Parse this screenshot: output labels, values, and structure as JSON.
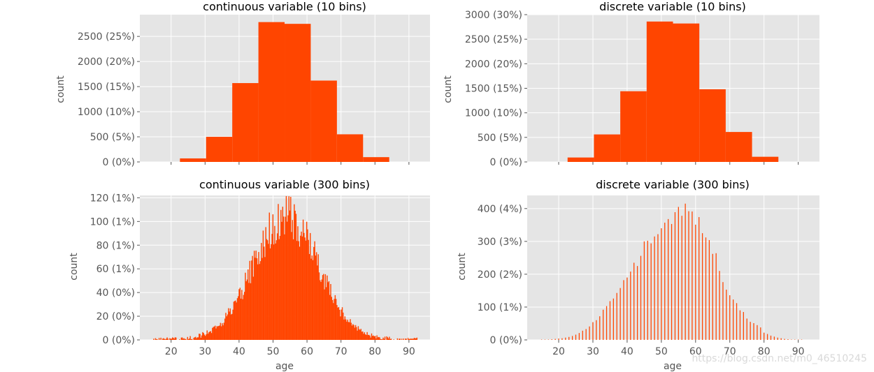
{
  "colors": {
    "panel_bg": "#e5e5e5",
    "bar": "#ff4500",
    "grid": "#ffffff",
    "tick_text": "#555555"
  },
  "watermark": "https://blog.csdn.net/m0_46510245",
  "chart_data": [
    {
      "type": "bar",
      "title": "continuous variable (10 bins)",
      "xlabel": "",
      "ylabel": "count",
      "xlim": [
        10.8,
        96.2
      ],
      "ylim": [
        0,
        2933
      ],
      "xticks": [
        20,
        30,
        40,
        50,
        60,
        70,
        80,
        90
      ],
      "show_xtick_labels": false,
      "yticks": [
        {
          "value": 0,
          "label": "0 (0%)"
        },
        {
          "value": 500,
          "label": "500 (5%)"
        },
        {
          "value": 1000,
          "label": "1000 (10%)"
        },
        {
          "value": 1500,
          "label": "1500 (15%)"
        },
        {
          "value": 2000,
          "label": "2000 (20%)"
        },
        {
          "value": 2500,
          "label": "2500 (25%)"
        }
      ],
      "bins": [
        {
          "x0": 22.6,
          "x1": 30.3,
          "count": 70
        },
        {
          "x0": 30.3,
          "x1": 38.0,
          "count": 500
        },
        {
          "x0": 38.0,
          "x1": 45.7,
          "count": 1570
        },
        {
          "x0": 45.7,
          "x1": 53.4,
          "count": 2785
        },
        {
          "x0": 53.4,
          "x1": 61.1,
          "count": 2750
        },
        {
          "x0": 61.1,
          "x1": 68.8,
          "count": 1620
        },
        {
          "x0": 68.8,
          "x1": 76.5,
          "count": 550
        },
        {
          "x0": 76.5,
          "x1": 84.2,
          "count": 95
        }
      ]
    },
    {
      "type": "bar",
      "title": "discrete variable (10 bins)",
      "xlabel": "",
      "ylabel": "count",
      "xlim": [
        10.8,
        96.2
      ],
      "ylim": [
        0,
        3000
      ],
      "xticks": [
        20,
        30,
        40,
        50,
        60,
        70,
        80,
        90
      ],
      "show_xtick_labels": false,
      "yticks": [
        {
          "value": 0,
          "label": "0 (0%)"
        },
        {
          "value": 500,
          "label": "500 (5%)"
        },
        {
          "value": 1000,
          "label": "1000 (10%)"
        },
        {
          "value": 1500,
          "label": "1500 (15%)"
        },
        {
          "value": 2000,
          "label": "2000 (20%)"
        },
        {
          "value": 2500,
          "label": "2500 (25%)"
        },
        {
          "value": 3000,
          "label": "3000 (30%)"
        }
      ],
      "bins": [
        {
          "x0": 22.6,
          "x1": 30.3,
          "count": 90
        },
        {
          "x0": 30.3,
          "x1": 38.0,
          "count": 560
        },
        {
          "x0": 38.0,
          "x1": 45.7,
          "count": 1440
        },
        {
          "x0": 45.7,
          "x1": 53.4,
          "count": 2860
        },
        {
          "x0": 53.4,
          "x1": 61.1,
          "count": 2820
        },
        {
          "x0": 61.1,
          "x1": 68.8,
          "count": 1480
        },
        {
          "x0": 68.8,
          "x1": 76.5,
          "count": 610
        },
        {
          "x0": 76.5,
          "x1": 84.2,
          "count": 105
        }
      ]
    },
    {
      "type": "histogram",
      "title": "continuous variable (300 bins)",
      "xlabel": "age",
      "ylabel": "count",
      "xlim": [
        10.8,
        96.2
      ],
      "ylim": [
        0,
        122
      ],
      "xticks": [
        20,
        30,
        40,
        50,
        60,
        70,
        80,
        90
      ],
      "show_xtick_labels": true,
      "yticks": [
        {
          "value": 0,
          "label": "0 (0%)"
        },
        {
          "value": 20,
          "label": "20 (0%)"
        },
        {
          "value": 40,
          "label": "40 (0%)"
        },
        {
          "value": 60,
          "label": "60 (1%)"
        },
        {
          "value": 80,
          "label": "80 (1%)"
        },
        {
          "value": 100,
          "label": "100 (1%)"
        },
        {
          "value": 120,
          "label": "120 (1%)"
        }
      ],
      "distribution": {
        "x_min": 14.5,
        "x_max": 93.0,
        "bins": 300,
        "mean": 53.8,
        "sd": 9.6,
        "peak": 103,
        "noise": 0.12
      }
    },
    {
      "type": "bar",
      "title": "discrete variable (300 bins)",
      "xlabel": "age",
      "ylabel": "count",
      "xlim": [
        10.8,
        96.2
      ],
      "ylim": [
        0,
        440
      ],
      "xticks": [
        20,
        30,
        40,
        50,
        60,
        70,
        80,
        90
      ],
      "show_xtick_labels": true,
      "yticks": [
        {
          "value": 0,
          "label": "0 (0%)"
        },
        {
          "value": 100,
          "label": "100 (1%)"
        },
        {
          "value": 200,
          "label": "200 (2%)"
        },
        {
          "value": 300,
          "label": "300 (3%)"
        },
        {
          "value": 400,
          "label": "400 (4%)"
        }
      ],
      "bar_width": 0.26,
      "ages": [
        15,
        16,
        17,
        18,
        19,
        20,
        21,
        22,
        23,
        24,
        25,
        26,
        27,
        28,
        29,
        30,
        31,
        32,
        33,
        34,
        35,
        36,
        37,
        38,
        39,
        40,
        41,
        42,
        43,
        44,
        45,
        46,
        47,
        48,
        49,
        50,
        51,
        52,
        53,
        54,
        55,
        56,
        57,
        58,
        59,
        60,
        61,
        62,
        63,
        64,
        65,
        66,
        67,
        68,
        69,
        70,
        71,
        72,
        73,
        74,
        75,
        76,
        77,
        78,
        79,
        80,
        81,
        82,
        83,
        84,
        85,
        86,
        87,
        88,
        89,
        90,
        91
      ],
      "counts": [
        1,
        1,
        1,
        2,
        3,
        4,
        5,
        7,
        9,
        12,
        16,
        21,
        28,
        33,
        41,
        54,
        60,
        72,
        92,
        103,
        118,
        126,
        143,
        158,
        182,
        190,
        208,
        235,
        225,
        256,
        300,
        302,
        294,
        315,
        322,
        340,
        357,
        368,
        353,
        389,
        405,
        378,
        415,
        392,
        391,
        351,
        374,
        325,
        312,
        304,
        262,
        264,
        210,
        176,
        153,
        136,
        123,
        112,
        90,
        85,
        65,
        55,
        51,
        45,
        38,
        22,
        18,
        13,
        10,
        7,
        5,
        3,
        2,
        1,
        1,
        1,
        1
      ]
    }
  ]
}
